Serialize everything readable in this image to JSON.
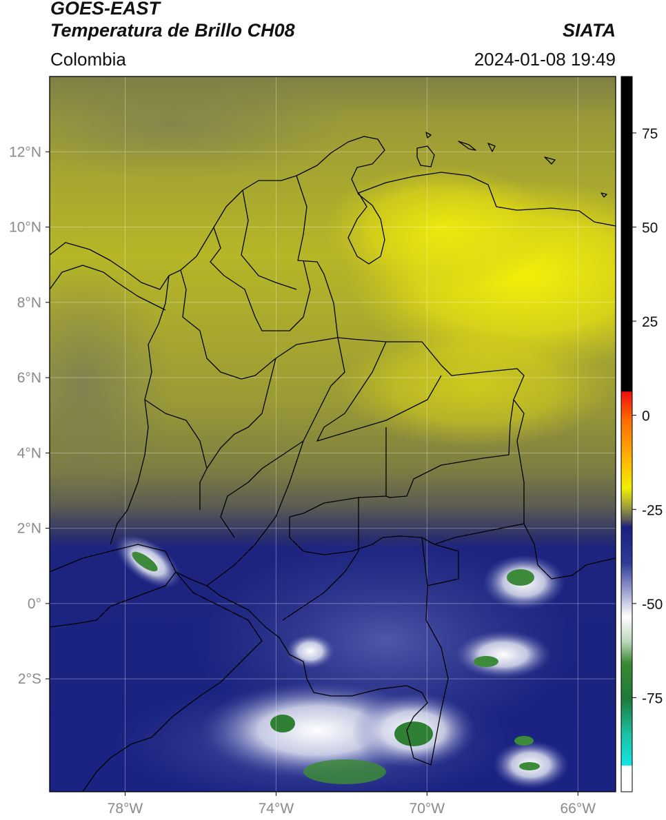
{
  "header": {
    "satellite": "GOES-EAST",
    "product": "Temperatura de Brillo CH08",
    "agency": "SIATA",
    "region": "Colombia",
    "datetime": "2024-01-08 19:49"
  },
  "map": {
    "lon_range": [
      -80,
      -65
    ],
    "lat_range": [
      -5,
      14
    ],
    "lat_labels": [
      "12°N",
      "10°N",
      "8°N",
      "6°N",
      "4°N",
      "2°N",
      "0°",
      "2°S"
    ],
    "lat_values": [
      12,
      10,
      8,
      6,
      4,
      2,
      0,
      -2
    ],
    "lon_labels": [
      "78°W",
      "74°W",
      "70°W",
      "66°W"
    ],
    "lon_values": [
      -78,
      -74,
      -70,
      -66
    ],
    "colors": {
      "cold_blue": "#1a2482",
      "mid_olive": "#8f8f3a",
      "warm_yellow": "#e7e20f",
      "cloud_white": "#f2f4f4",
      "cloud_green": "#3d8a3a",
      "gray_lower": "#6f6f5c"
    }
  },
  "colorbar": {
    "range": [
      -100,
      90
    ],
    "tick_labels": [
      "75",
      "50",
      "25",
      "0",
      "-25",
      "-50",
      "-75"
    ],
    "tick_values": [
      75,
      50,
      25,
      0,
      -25,
      -50,
      -75
    ]
  }
}
